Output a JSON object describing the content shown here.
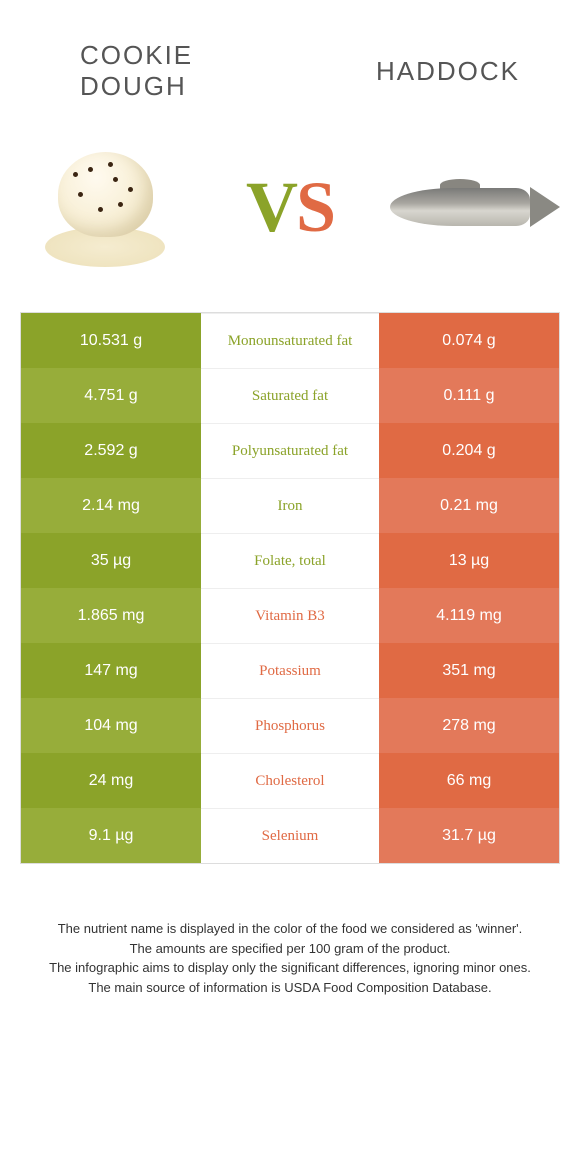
{
  "header": {
    "left_title_line1": "Cookie",
    "left_title_line2": "dough",
    "right_title": "Haddock"
  },
  "vs": {
    "v": "V",
    "s": "S"
  },
  "colors": {
    "green": "#8ba329",
    "green_alt": "#97ad3a",
    "orange": "#e06a44",
    "orange_alt": "#e3795a",
    "background": "#ffffff",
    "text": "#333333",
    "border": "#dddddd"
  },
  "typography": {
    "title_fontsize": 26,
    "vs_fontsize": 72,
    "cell_fontsize": 16,
    "label_fontsize": 15,
    "footer_fontsize": 13
  },
  "table": {
    "rows": [
      {
        "left": "10.531 g",
        "label": "Monounsaturated fat",
        "right": "0.074 g",
        "winner": "green"
      },
      {
        "left": "4.751 g",
        "label": "Saturated fat",
        "right": "0.111 g",
        "winner": "green"
      },
      {
        "left": "2.592 g",
        "label": "Polyunsaturated fat",
        "right": "0.204 g",
        "winner": "green"
      },
      {
        "left": "2.14 mg",
        "label": "Iron",
        "right": "0.21 mg",
        "winner": "green"
      },
      {
        "left": "35 µg",
        "label": "Folate, total",
        "right": "13 µg",
        "winner": "green"
      },
      {
        "left": "1.865 mg",
        "label": "Vitamin B3",
        "right": "4.119 mg",
        "winner": "orange"
      },
      {
        "left": "147 mg",
        "label": "Potassium",
        "right": "351 mg",
        "winner": "orange"
      },
      {
        "left": "104 mg",
        "label": "Phosphorus",
        "right": "278 mg",
        "winner": "orange"
      },
      {
        "left": "24 mg",
        "label": "Cholesterol",
        "right": "66 mg",
        "winner": "orange"
      },
      {
        "left": "9.1 µg",
        "label": "Selenium",
        "right": "31.7 µg",
        "winner": "orange"
      }
    ]
  },
  "footer": {
    "line1": "The nutrient name is displayed in the color of the food we considered as 'winner'.",
    "line2": "The amounts are specified per 100 gram of the product.",
    "line3": "The infographic aims to display only the significant differences, ignoring minor ones.",
    "line4": "The main source of information is USDA Food Composition Database."
  }
}
